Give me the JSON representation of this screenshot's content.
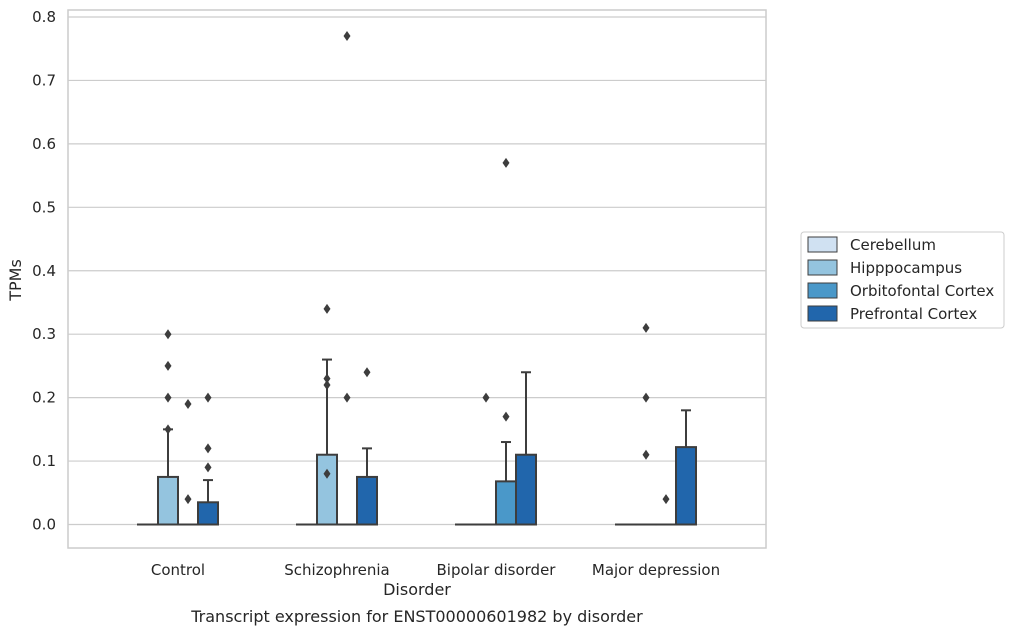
{
  "caption": "Transcript expression for ENST00000601982 by disorder",
  "chart_data": {
    "type": "box",
    "xlabel": "Disorder",
    "ylabel": "TPMs",
    "ylim": [
      -0.038,
      0.812
    ],
    "yticks": [
      0.0,
      0.1,
      0.2,
      0.3,
      0.4,
      0.5,
      0.6,
      0.7,
      0.8
    ],
    "ytick_labels": [
      "0.0",
      "0.1",
      "0.2",
      "0.3",
      "0.4",
      "0.5",
      "0.6",
      "0.7",
      "0.8"
    ],
    "grid": true,
    "legend_position": "right",
    "categories": [
      "Control",
      "Schizophrenia",
      "Bipolar disorder",
      "Major depression"
    ],
    "series": [
      {
        "name": "Cerebellum",
        "color": "#d0e1f2",
        "boxes": [
          {
            "q1": 0,
            "median": 0,
            "q3": 0,
            "whisker_low": 0,
            "whisker_high": 0,
            "outliers": []
          },
          {
            "q1": 0,
            "median": 0,
            "q3": 0,
            "whisker_low": 0,
            "whisker_high": 0,
            "outliers": []
          },
          {
            "q1": 0,
            "median": 0,
            "q3": 0,
            "whisker_low": 0,
            "whisker_high": 0,
            "outliers": []
          },
          {
            "q1": 0,
            "median": 0,
            "q3": 0,
            "whisker_low": 0,
            "whisker_high": 0,
            "outliers": []
          }
        ]
      },
      {
        "name": "Hipppocampus",
        "color": "#94c4df",
        "boxes": [
          {
            "q1": 0,
            "median": 0,
            "q3": 0.075,
            "whisker_low": 0,
            "whisker_high": 0.15,
            "outliers": [
              0.15,
              0.2,
              0.25,
              0.3
            ]
          },
          {
            "q1": 0,
            "median": 0,
            "q3": 0.11,
            "whisker_low": 0,
            "whisker_high": 0.26,
            "outliers": [
              0.08,
              0.22,
              0.23,
              0.34
            ]
          },
          {
            "q1": 0,
            "median": 0,
            "q3": 0,
            "whisker_low": 0,
            "whisker_high": 0,
            "outliers": [
              0.2
            ]
          },
          {
            "q1": 0,
            "median": 0,
            "q3": 0,
            "whisker_low": 0,
            "whisker_high": 0,
            "outliers": [
              0.11,
              0.2,
              0.31
            ]
          }
        ]
      },
      {
        "name": "Orbitofontal Cortex",
        "color": "#4a98c9",
        "boxes": [
          {
            "q1": 0,
            "median": 0,
            "q3": 0,
            "whisker_low": 0,
            "whisker_high": 0,
            "outliers": [
              0.04,
              0.19
            ]
          },
          {
            "q1": 0,
            "median": 0,
            "q3": 0,
            "whisker_low": 0,
            "whisker_high": 0,
            "outliers": [
              0.2,
              0.77
            ]
          },
          {
            "q1": 0,
            "median": 0,
            "q3": 0.068,
            "whisker_low": 0,
            "whisker_high": 0.13,
            "outliers": [
              0.17,
              0.57
            ]
          },
          {
            "q1": 0,
            "median": 0,
            "q3": 0,
            "whisker_low": 0,
            "whisker_high": 0,
            "outliers": [
              0.04
            ]
          }
        ]
      },
      {
        "name": "Prefrontal Cortex",
        "color": "#2166ac",
        "boxes": [
          {
            "q1": 0,
            "median": 0,
            "q3": 0.035,
            "whisker_low": 0,
            "whisker_high": 0.07,
            "outliers": [
              0.09,
              0.12,
              0.2
            ]
          },
          {
            "q1": 0,
            "median": 0,
            "q3": 0.075,
            "whisker_low": 0,
            "whisker_high": 0.12,
            "outliers": [
              0.24
            ]
          },
          {
            "q1": 0,
            "median": 0,
            "q3": 0.11,
            "whisker_low": 0,
            "whisker_high": 0.24,
            "outliers": []
          },
          {
            "q1": 0,
            "median": 0,
            "q3": 0.122,
            "whisker_low": 0,
            "whisker_high": 0.18,
            "outliers": []
          }
        ]
      }
    ]
  }
}
